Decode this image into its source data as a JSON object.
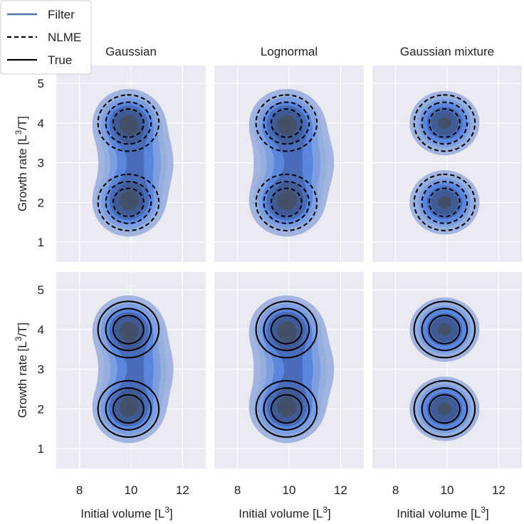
{
  "legend": {
    "entries": [
      {
        "label": "Filter",
        "style": "filter"
      },
      {
        "label": "NLME",
        "style": "dashed"
      },
      {
        "label": "True",
        "style": "solid"
      }
    ],
    "placement": "top-left"
  },
  "colors": {
    "panel_bg": "#eaeaf2",
    "grid": "#ffffff",
    "filter_fill": "#4c72b0",
    "filter_legend": "#4c72b0",
    "kde_band_1": "#a3b4e0",
    "kde_band_2": "#94aede",
    "kde_band_3": "#7d9ee0",
    "kde_band_4": "#5a86de",
    "kde_band_5": "#4a6cb8",
    "kde_band_6": "#3f5a95",
    "kde_band_7": "#425068",
    "line": "#000000"
  },
  "axes": {
    "xlabel": "Initial volume [L",
    "xlabel_sup": "3",
    "xlabel_end": "]",
    "ylabel": "Growth rate [L",
    "ylabel_sup": "3",
    "ylabel_end": "/T]",
    "x_ticks": [
      8,
      10,
      12
    ],
    "x_tick_labels": [
      "8",
      "10",
      "12"
    ],
    "y_ticks": [
      1,
      2,
      3,
      4,
      5
    ],
    "y_tick_labels": [
      "1",
      "2",
      "3",
      "4",
      "5"
    ],
    "xlim": [
      7.1,
      12.9
    ],
    "ylim": [
      0.5,
      5.45
    ],
    "grid": true
  },
  "column_titles": [
    "Gaussian",
    "Lognormal",
    "Gaussian mixture"
  ],
  "chart_data": {
    "type": "density contour grid",
    "rows": 2,
    "columns": 3,
    "filled_series": "Filter",
    "row_overlays": [
      "NLME",
      "True"
    ],
    "density_model": {
      "components": [
        {
          "weight": 0.5,
          "mean": [
            9.9,
            2.0
          ],
          "sd": [
            0.55,
            0.33
          ]
        },
        {
          "weight": 0.5,
          "mean": [
            9.9,
            4.0
          ],
          "sd": [
            0.55,
            0.33
          ]
        }
      ],
      "filled_levels": [
        0.03,
        0.06,
        0.1,
        0.16,
        0.24,
        0.33,
        0.45
      ],
      "line_levels": [
        0.05,
        0.14,
        0.28,
        0.55
      ]
    },
    "panels": [
      {
        "title": "Gaussian",
        "row": 0,
        "col": 0,
        "overlay": "NLME",
        "filter_components": [
          {
            "weight": 0.5,
            "mean": [
              9.9,
              2.0
            ],
            "sd": [
              0.58,
              0.36
            ]
          },
          {
            "weight": 0.5,
            "mean": [
              9.9,
              4.0
            ],
            "sd": [
              0.58,
              0.36
            ]
          },
          {
            "weight": 0.25,
            "mean": [
              10.2,
              3.0
            ],
            "sd": [
              0.7,
              0.55
            ]
          }
        ]
      },
      {
        "title": "Lognormal",
        "row": 0,
        "col": 1,
        "overlay": "NLME",
        "filter_components": [
          {
            "weight": 0.5,
            "mean": [
              9.9,
              2.0
            ],
            "sd": [
              0.6,
              0.36
            ]
          },
          {
            "weight": 0.5,
            "mean": [
              9.9,
              4.0
            ],
            "sd": [
              0.6,
              0.36
            ]
          },
          {
            "weight": 0.25,
            "mean": [
              10.2,
              3.0
            ],
            "sd": [
              0.75,
              0.55
            ]
          }
        ]
      },
      {
        "title": "Gaussian mixture",
        "row": 0,
        "col": 2,
        "overlay": "NLME",
        "filter_components": [
          {
            "weight": 0.5,
            "mean": [
              9.9,
              2.0
            ],
            "sd": [
              0.57,
              0.34
            ]
          },
          {
            "weight": 0.5,
            "mean": [
              9.9,
              4.0
            ],
            "sd": [
              0.57,
              0.34
            ]
          }
        ]
      },
      {
        "title": "Gaussian",
        "row": 1,
        "col": 0,
        "overlay": "True",
        "filter_components": [
          {
            "weight": 0.5,
            "mean": [
              9.9,
              2.0
            ],
            "sd": [
              0.58,
              0.36
            ]
          },
          {
            "weight": 0.5,
            "mean": [
              9.9,
              4.0
            ],
            "sd": [
              0.58,
              0.36
            ]
          },
          {
            "weight": 0.25,
            "mean": [
              10.2,
              3.0
            ],
            "sd": [
              0.7,
              0.55
            ]
          }
        ]
      },
      {
        "title": "Lognormal",
        "row": 1,
        "col": 1,
        "overlay": "True",
        "filter_components": [
          {
            "weight": 0.5,
            "mean": [
              9.9,
              2.0
            ],
            "sd": [
              0.6,
              0.36
            ]
          },
          {
            "weight": 0.5,
            "mean": [
              9.9,
              4.0
            ],
            "sd": [
              0.6,
              0.36
            ]
          },
          {
            "weight": 0.25,
            "mean": [
              10.2,
              3.0
            ],
            "sd": [
              0.75,
              0.55
            ]
          }
        ]
      },
      {
        "title": "Gaussian mixture",
        "row": 1,
        "col": 2,
        "overlay": "True",
        "filter_components": [
          {
            "weight": 0.5,
            "mean": [
              9.9,
              2.0
            ],
            "sd": [
              0.57,
              0.34
            ]
          },
          {
            "weight": 0.5,
            "mean": [
              9.9,
              4.0
            ],
            "sd": [
              0.57,
              0.34
            ]
          }
        ]
      }
    ]
  }
}
